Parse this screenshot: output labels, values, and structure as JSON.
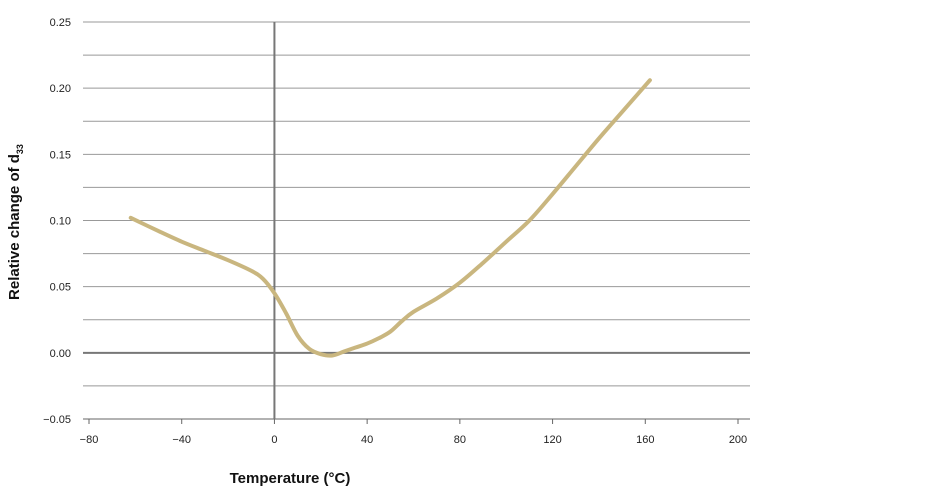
{
  "chart_data": {
    "type": "line",
    "xlabel": "Temperature (°C)",
    "ylabel": "Relative change of d",
    "ylabel_subscript": "33",
    "xlim": [
      -80,
      200
    ],
    "ylim": [
      -0.05,
      0.25
    ],
    "x_ticks": [
      "−80",
      "−40",
      "0",
      "40",
      "80",
      "120",
      "160",
      "200"
    ],
    "y_ticks": [
      "0.25",
      "0.20",
      "0.15",
      "0.10",
      "0.05",
      "0.00",
      "−0.05"
    ],
    "grid": true,
    "line_color": "#c9b67f",
    "series": [
      {
        "x": [
          -62,
          -50,
          -40,
          -30,
          -20,
          -10,
          -5,
          0,
          5,
          10,
          15,
          20,
          25,
          30,
          35,
          40,
          45,
          50,
          55,
          60,
          70,
          80,
          90,
          100,
          110,
          120,
          130,
          140,
          150,
          162
        ],
        "y": [
          0.102,
          0.092,
          0.084,
          0.077,
          0.07,
          0.062,
          0.056,
          0.045,
          0.03,
          0.013,
          0.003,
          -0.001,
          -0.002,
          0.001,
          0.004,
          0.007,
          0.011,
          0.016,
          0.024,
          0.031,
          0.041,
          0.053,
          0.068,
          0.084,
          0.1,
          0.12,
          0.141,
          0.162,
          0.182,
          0.206
        ]
      }
    ]
  }
}
